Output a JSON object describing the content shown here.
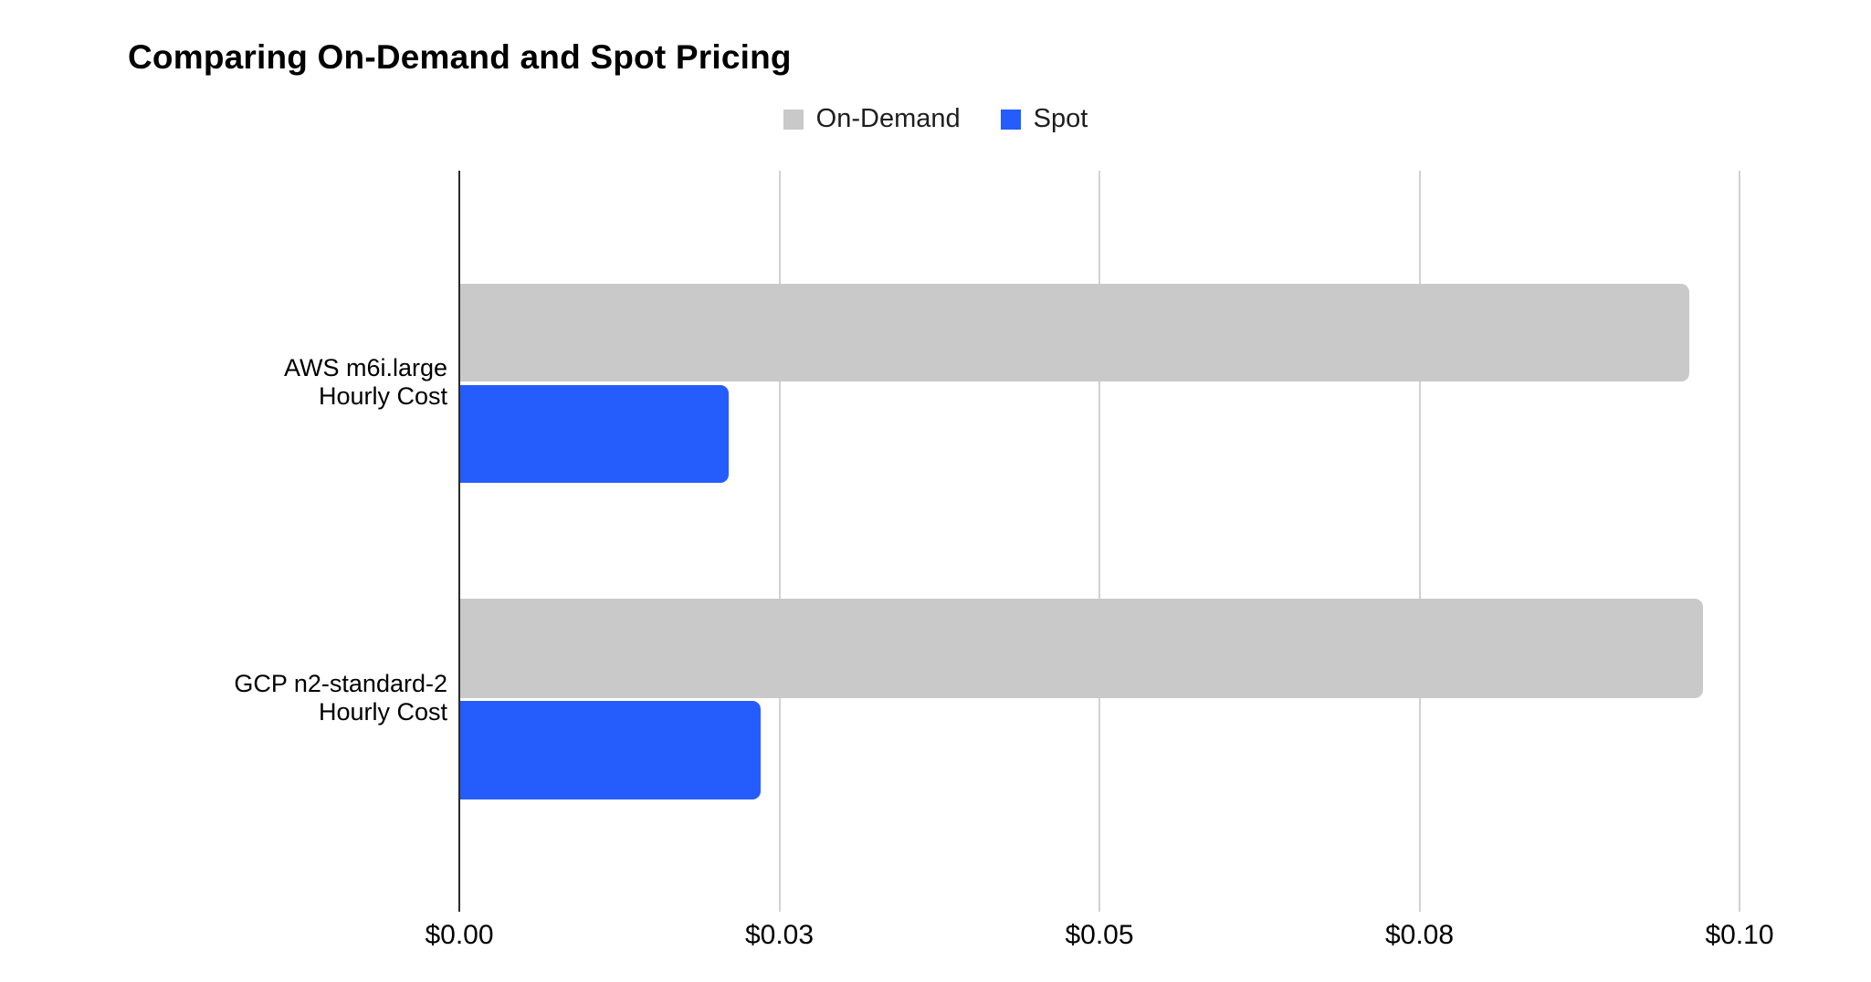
{
  "chart_data": {
    "type": "bar",
    "orientation": "horizontal",
    "title": "Comparing On-Demand and Spot Pricing",
    "categories": [
      [
        "AWS m6i.large",
        "Hourly Cost"
      ],
      [
        "GCP n2-standard-2",
        "Hourly Cost"
      ]
    ],
    "series": [
      {
        "name": "On-Demand",
        "color": "#c9c9c9",
        "values": [
          0.096,
          0.0971
        ]
      },
      {
        "name": "Spot",
        "color": "#255cfc",
        "values": [
          0.021,
          0.0235
        ]
      }
    ],
    "x_axis": {
      "min": 0,
      "max": 0.1,
      "tick_values": [
        0,
        0.025,
        0.05,
        0.075,
        0.1
      ],
      "tick_labels": [
        "$0.00",
        "$0.03",
        "$0.05",
        "$0.08",
        "$0.10"
      ],
      "format": "currency-per-hour"
    },
    "grid": true,
    "legend_position": "top-center",
    "background": "#ffffff",
    "axis_line_color": "#2b2b2b",
    "gridline_color": "#d2d2d2"
  }
}
